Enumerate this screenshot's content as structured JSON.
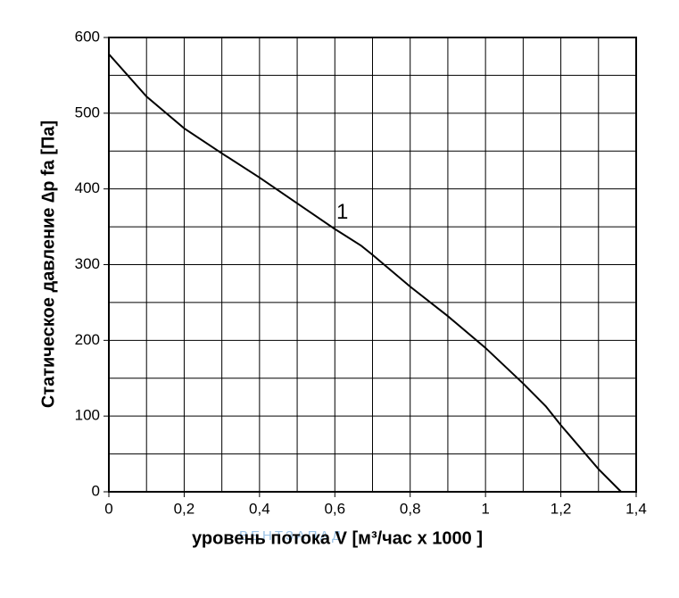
{
  "chart_data": {
    "type": "line",
    "x_label": "уровень потока  V [м³/час x 1000 ]",
    "y_label": "Статическое давление  ∆p fa [Па]",
    "annotation": {
      "text": "1",
      "x": 0.62,
      "y": 368
    },
    "watermark": "ВЕНТЗАПАД",
    "x": [
      0,
      0.1,
      0.2,
      0.3,
      0.4,
      0.5,
      0.6,
      0.67,
      0.7,
      0.8,
      0.9,
      1.0,
      1.1,
      1.16,
      1.2,
      1.3,
      1.36
    ],
    "values": [
      578,
      522,
      480,
      447,
      415,
      381,
      347,
      325,
      313,
      271,
      232,
      190,
      143,
      113,
      88,
      30,
      0
    ],
    "color": "#000000",
    "xlim": [
      0,
      1.4
    ],
    "ylim": [
      0,
      600
    ],
    "xticks": [
      0,
      {
        "value": 0.2,
        "label": "0,2"
      },
      {
        "value": 0.4,
        "label": "0,4"
      },
      {
        "value": 0.6,
        "label": "0,6"
      },
      {
        "value": 0.8,
        "label": "0,8"
      },
      1,
      {
        "value": 1.2,
        "label": "1,2"
      },
      {
        "value": 1.4,
        "label": "1,4"
      }
    ],
    "yticks": [
      0,
      100,
      200,
      300,
      400,
      500,
      600
    ],
    "x_grid": [
      0,
      0.1,
      0.2,
      0.3,
      0.4,
      0.5,
      0.6,
      0.7,
      0.8,
      0.9,
      1.0,
      1.1,
      1.2,
      1.3,
      1.4
    ],
    "y_grid": [
      0,
      50,
      100,
      150,
      200,
      250,
      300,
      350,
      400,
      450,
      500,
      550,
      600
    ],
    "grid": true
  }
}
